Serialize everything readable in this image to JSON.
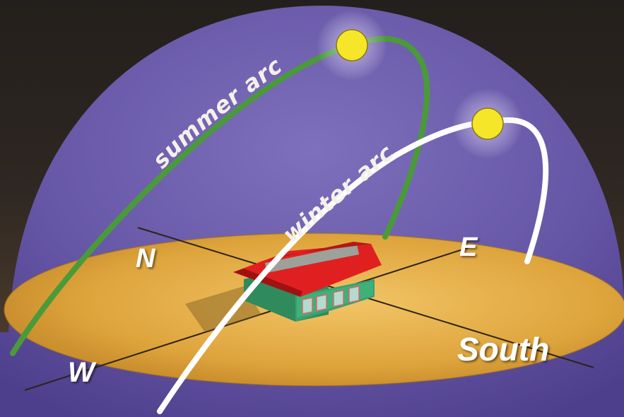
{
  "diagram": {
    "labels": {
      "summer_arc": "summer arc",
      "winter_arc": "winter arc"
    },
    "compass": {
      "north": "N",
      "east": "E",
      "south": "South",
      "west": "W"
    }
  },
  "colors": {
    "sky_dome": "#6b5ba8",
    "ground": "#d59a32",
    "summer_arc": "#4a9a3a",
    "winter_arc": "#ffffff",
    "sun": "#f6e62a",
    "roof": "#e02020",
    "walls": "#3aa070"
  }
}
